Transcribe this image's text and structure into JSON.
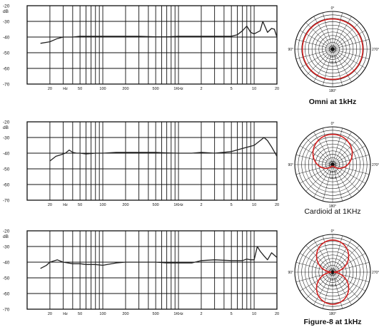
{
  "chart_data": [
    {
      "type": "line",
      "x_scale": "log",
      "xlim": [
        10,
        20000
      ],
      "ylim": [
        -70,
        -20
      ],
      "y_unit": "dB",
      "y_ticks": [
        "-20",
        "-30",
        "-40",
        "-50",
        "-60",
        "-70"
      ],
      "x_tick_labels": [
        "20",
        "Hz",
        "50",
        "100",
        "200",
        "500",
        "1KHz",
        "2",
        "5",
        "10",
        "20"
      ],
      "grid": true,
      "x": [
        15,
        20,
        25,
        30,
        40,
        50,
        60,
        80,
        100,
        150,
        200,
        300,
        500,
        700,
        1000,
        1500,
        2000,
        3000,
        4000,
        5000,
        6000,
        7000,
        8000,
        9000,
        10000,
        12000,
        13000,
        15000,
        17000,
        18500,
        20000
      ],
      "y": [
        -44,
        -43,
        -41,
        -40,
        -40,
        -39.5,
        -39.5,
        -39.5,
        -39.5,
        -39.5,
        -39.5,
        -39.5,
        -39.8,
        -39.8,
        -39.5,
        -39.5,
        -39.5,
        -39.5,
        -39.5,
        -39.5,
        -38.5,
        -36,
        -33,
        -37,
        -38,
        -36,
        -30,
        -37,
        -34.5,
        -35,
        -40
      ]
    },
    {
      "type": "line",
      "x_scale": "log",
      "xlim": [
        10,
        20000
      ],
      "ylim": [
        -70,
        -20
      ],
      "y_unit": "dB",
      "y_ticks": [
        "-20",
        "-30",
        "-40",
        "-50",
        "-60",
        "-70"
      ],
      "x_tick_labels": [
        "20",
        "Hz",
        "50",
        "100",
        "200",
        "500",
        "1KHz",
        "2",
        "5",
        "10",
        "20"
      ],
      "grid": true,
      "x": [
        20,
        24,
        28,
        32,
        36,
        40,
        45,
        50,
        60,
        80,
        100,
        150,
        200,
        300,
        500,
        700,
        1000,
        1500,
        2000,
        3000,
        5000,
        7000,
        10000,
        12000,
        13500,
        15000,
        17000,
        20000
      ],
      "y": [
        -45,
        -42,
        -41,
        -40,
        -38,
        -39.5,
        -40,
        -40,
        -40.5,
        -40,
        -40,
        -39.5,
        -39.5,
        -39.5,
        -39.5,
        -39.8,
        -40,
        -40,
        -39.5,
        -40,
        -39,
        -37,
        -35,
        -32,
        -30,
        -32,
        -36,
        -42
      ]
    },
    {
      "type": "line",
      "x_scale": "log",
      "xlim": [
        10,
        20000
      ],
      "ylim": [
        -70,
        -20
      ],
      "y_unit": "dB",
      "y_ticks": [
        "-20",
        "-30",
        "-40",
        "-50",
        "-60",
        "-70"
      ],
      "x_tick_labels": [
        "20",
        "Hz",
        "50",
        "100",
        "200",
        "500",
        "1KHz",
        "2",
        "5",
        "10",
        "20"
      ],
      "grid": true,
      "x": [
        15,
        18,
        20,
        25,
        30,
        40,
        50,
        60,
        70,
        80,
        100,
        150,
        200,
        300,
        500,
        700,
        1000,
        1500,
        2000,
        3000,
        5000,
        7000,
        8000,
        9000,
        10000,
        11000,
        12000,
        13500,
        15000,
        17000,
        20000
      ],
      "y": [
        -44,
        -42,
        -40,
        -38.5,
        -40,
        -41,
        -41,
        -41.5,
        -41.5,
        -41.5,
        -42,
        -40.5,
        -40,
        -40,
        -40,
        -40.5,
        -40.5,
        -40.5,
        -39,
        -38.5,
        -39,
        -39,
        -38,
        -38.5,
        -38.5,
        -30,
        -33,
        -36,
        -38.5,
        -34,
        -37
      ]
    },
    {
      "type": "polar",
      "pattern": "omni",
      "caption": "Omni at 1kHz",
      "angle_labels": [
        "0°",
        "90°",
        "270°",
        "180°"
      ],
      "ring_labels": [
        "-10.0",
        "-20.0"
      ]
    },
    {
      "type": "polar",
      "pattern": "cardioid",
      "caption": "Cardioid at 1KHz",
      "angle_labels": [
        "0°",
        "90°",
        "270°",
        "180°"
      ],
      "ring_labels": [
        "-10.0",
        "-20.0"
      ]
    },
    {
      "type": "polar",
      "pattern": "figure-8",
      "caption": "Figure-8 at 1kHz",
      "angle_labels": [
        "0°",
        "90°",
        "270°",
        "180°"
      ],
      "ring_labels": [
        "-10.0",
        "-20.0"
      ]
    }
  ],
  "colors": {
    "curve": "#222222",
    "grid": "#111111",
    "polar_pattern": "#d42020",
    "text": "#111111"
  }
}
